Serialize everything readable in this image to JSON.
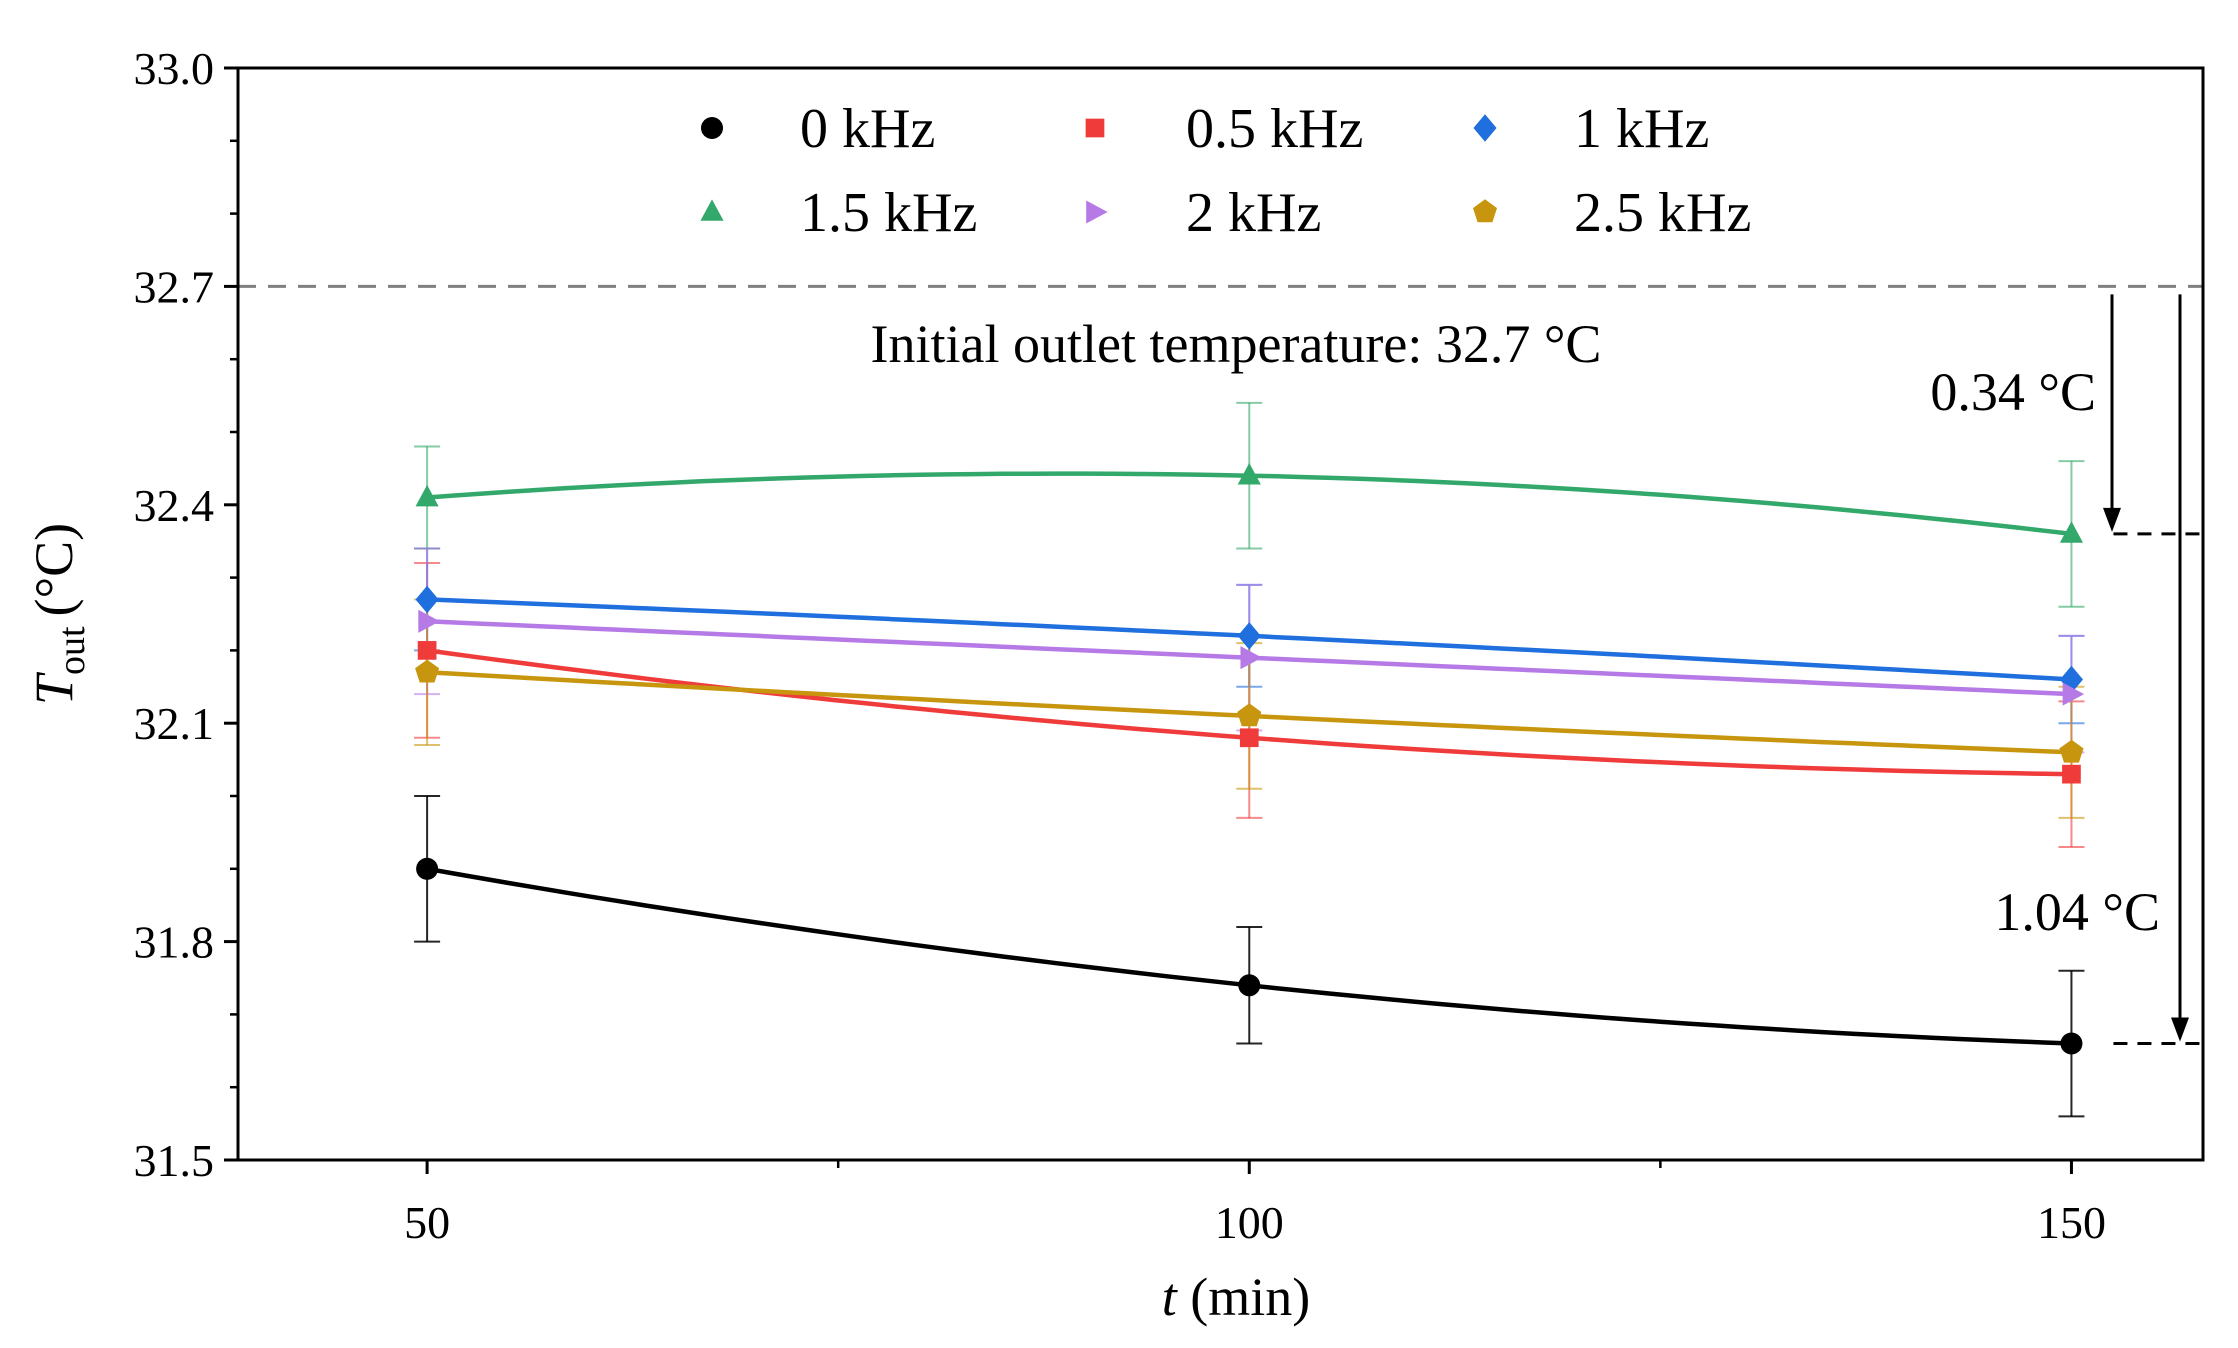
{
  "chart_data": {
    "type": "line",
    "title": "",
    "xlabel": "t",
    "xlabel_unit": "(min)",
    "ylabel": "T",
    "ylabel_sub": "out",
    "ylabel_unit": "(°C)",
    "x": [
      50,
      100,
      150
    ],
    "xlim": [
      38.5,
      158
    ],
    "ylim": [
      31.5,
      33.0
    ],
    "xticks": [
      "50",
      "100",
      "150"
    ],
    "yticks": [
      "31.5",
      "31.8",
      "32.1",
      "32.4",
      "32.7",
      "33.0"
    ],
    "legend_position": "top-center",
    "series": [
      {
        "name": "0 kHz",
        "marker": "circle",
        "color": "#000000",
        "values": [
          31.9,
          31.74,
          31.66
        ],
        "errors": [
          0.1,
          0.08,
          0.1
        ]
      },
      {
        "name": "0.5 kHz",
        "marker": "square",
        "color": "#f03b3b",
        "values": [
          32.2,
          32.08,
          32.03
        ],
        "errors": [
          0.12,
          0.11,
          0.1
        ]
      },
      {
        "name": "1 kHz",
        "marker": "diamond",
        "color": "#1f6fde",
        "values": [
          32.27,
          32.22,
          32.16
        ],
        "errors": [
          0.07,
          0.07,
          0.06
        ]
      },
      {
        "name": "1.5 kHz",
        "marker": "triangle-up",
        "color": "#33a86b",
        "values": [
          32.41,
          32.44,
          32.36
        ],
        "errors": [
          0.07,
          0.1,
          0.1
        ]
      },
      {
        "name": "2 kHz",
        "marker": "triangle-right",
        "color": "#b57ae6",
        "values": [
          32.24,
          32.19,
          32.14
        ],
        "errors": [
          0.1,
          0.1,
          0.08
        ]
      },
      {
        "name": "2.5 kHz",
        "marker": "pentagon",
        "color": "#c8960e",
        "values": [
          32.17,
          32.11,
          32.06
        ],
        "errors": [
          0.1,
          0.1,
          0.09
        ]
      }
    ],
    "reference_line": {
      "y": 32.7,
      "label": "Initial outlet temperature: 32.7 °C",
      "color": "#808080"
    },
    "annotations": [
      {
        "label": "0.34 °C",
        "from_y": 32.7,
        "to_y": 32.36
      },
      {
        "label": "1.04 °C",
        "from_y": 32.7,
        "to_y": 31.66
      }
    ]
  }
}
